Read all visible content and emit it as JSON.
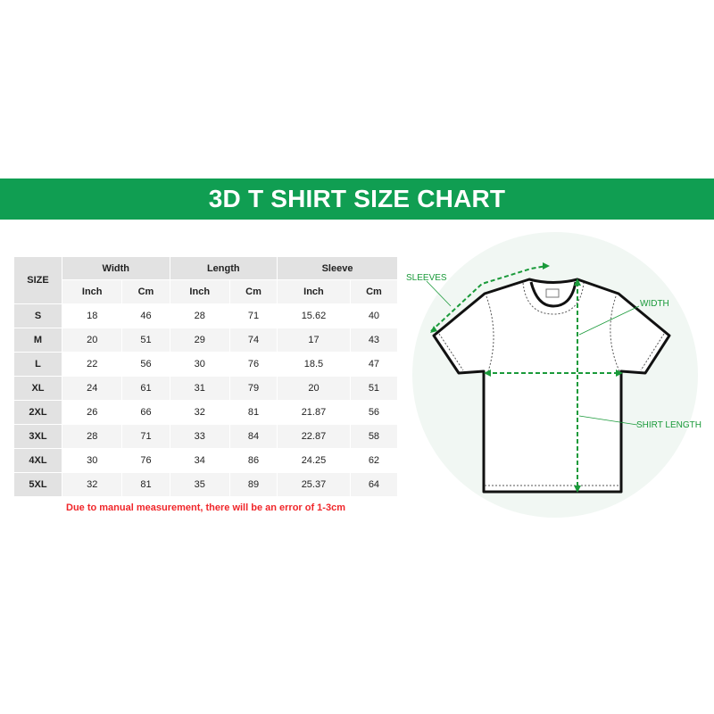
{
  "title": "3D T SHIRT SIZE CHART",
  "table": {
    "size_header": "SIZE",
    "groups": [
      "Width",
      "Length",
      "Sleeve"
    ],
    "units": [
      "Inch",
      "Cm",
      "Inch",
      "Cm",
      "Inch",
      "Cm"
    ],
    "rows": [
      {
        "size": "S",
        "values": [
          "18",
          "46",
          "28",
          "71",
          "15.62",
          "40"
        ]
      },
      {
        "size": "M",
        "values": [
          "20",
          "51",
          "29",
          "74",
          "17",
          "43"
        ]
      },
      {
        "size": "L",
        "values": [
          "22",
          "56",
          "30",
          "76",
          "18.5",
          "47"
        ]
      },
      {
        "size": "XL",
        "values": [
          "24",
          "61",
          "31",
          "79",
          "20",
          "51"
        ]
      },
      {
        "size": "2XL",
        "values": [
          "26",
          "66",
          "32",
          "81",
          "21.87",
          "56"
        ]
      },
      {
        "size": "3XL",
        "values": [
          "28",
          "71",
          "33",
          "84",
          "22.87",
          "58"
        ]
      },
      {
        "size": "4XL",
        "values": [
          "30",
          "76",
          "34",
          "86",
          "24.25",
          "62"
        ]
      },
      {
        "size": "5XL",
        "values": [
          "32",
          "81",
          "35",
          "89",
          "25.37",
          "64"
        ]
      }
    ]
  },
  "note": "Due to manual measurement, there will be an error of 1-3cm",
  "diagram": {
    "labels": {
      "sleeves": "SLEEVES",
      "width": "WIDTH",
      "length": "SHIRT LENGTH"
    },
    "accent_color": "#1a9a3a",
    "banner_color": "#109e52",
    "note_color": "#f0262a"
  }
}
